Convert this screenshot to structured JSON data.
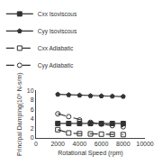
{
  "chart_data": {
    "type": "line",
    "x": [
      2000,
      3000,
      4000,
      5000,
      6000,
      7000,
      8000
    ],
    "xlabel": "Rotational Speed (rpm)",
    "ylabel": "Principal Damping(10⁵ N-s/m)",
    "xlim": [
      0,
      10000
    ],
    "ylim": [
      0,
      10
    ],
    "xticks": [
      0,
      2000,
      4000,
      6000,
      8000,
      10000
    ],
    "yticks": [
      0,
      2,
      4,
      6,
      8,
      10
    ],
    "grid": false,
    "legend": "top",
    "series": [
      {
        "name": "Cxx Isoviscous",
        "color": "#333333",
        "marker": "square",
        "line_style": "solid",
        "values": [
          3.05,
          3.05,
          3.05,
          3.05,
          3.05,
          3.05,
          3.05
        ]
      },
      {
        "name": "Cyy Isoviscous",
        "color": "#333333",
        "marker": "pentagon",
        "line_style": "solid",
        "values": [
          9.2,
          9.1,
          9.0,
          8.9,
          8.85,
          8.8,
          8.75
        ]
      },
      {
        "name": "Cxx Adiabatic",
        "color": "#333333",
        "marker": "square-open",
        "line_style": "dash",
        "values": [
          1.75,
          1.05,
          0.9,
          0.85,
          0.8,
          0.75,
          0.7
        ]
      },
      {
        "name": "Cyy Adiabatic",
        "color": "#333333",
        "marker": "circle-open",
        "line_style": "dash",
        "values": [
          5.1,
          4.5,
          3.8,
          3.3,
          2.9,
          2.6,
          2.35
        ]
      }
    ]
  }
}
